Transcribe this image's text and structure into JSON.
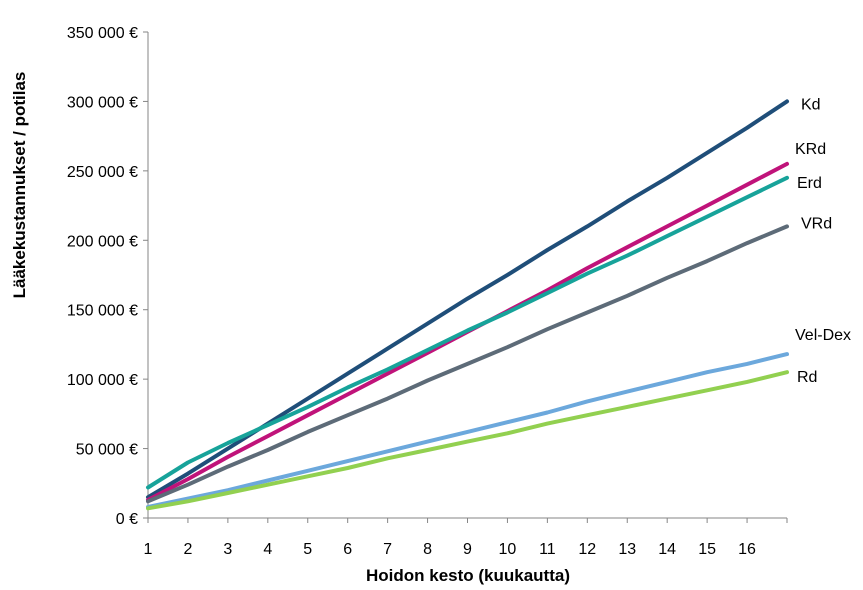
{
  "chart_data": {
    "type": "line",
    "title": "",
    "xlabel": "Hoidon kesto (kuukautta)",
    "ylabel": "Lääkekustannukset / potilas",
    "xlim": [
      1,
      17
    ],
    "ylim": [
      0,
      350000
    ],
    "x_ticks": [
      "1",
      "2",
      "3",
      "4",
      "5",
      "6",
      "7",
      "8",
      "9",
      "10",
      "11",
      "12",
      "13",
      "14",
      "15",
      "16"
    ],
    "y_ticks": [
      0,
      50000,
      100000,
      150000,
      200000,
      250000,
      300000,
      350000
    ],
    "y_tick_labels": [
      "0 €",
      "50 000 €",
      "100 000 €",
      "150 000 €",
      "200 000 €",
      "250 000 €",
      "300 000 €",
      "350 000 €"
    ],
    "grid": false,
    "legend": "direct labels at line ends",
    "x": [
      1,
      2,
      3,
      4,
      5,
      6,
      7,
      8,
      9,
      10,
      11,
      12,
      13,
      14,
      15,
      16,
      17
    ],
    "series": [
      {
        "name": "Kd",
        "color": "#1F4E79",
        "values": [
          15000,
          32000,
          50000,
          68000,
          86000,
          104000,
          122000,
          140000,
          158000,
          175000,
          193000,
          210000,
          228000,
          245000,
          263000,
          281000,
          300000
        ]
      },
      {
        "name": "KRd",
        "color": "#C0137A",
        "values": [
          13000,
          28000,
          44000,
          59000,
          74000,
          89000,
          104000,
          119000,
          134000,
          149000,
          164000,
          180000,
          195000,
          210000,
          225000,
          240000,
          255000
        ]
      },
      {
        "name": "Erd",
        "color": "#17A39A",
        "values": [
          22000,
          40000,
          54000,
          67000,
          80000,
          94000,
          107000,
          121000,
          135000,
          148000,
          162000,
          176000,
          189000,
          203000,
          217000,
          231000,
          245000
        ]
      },
      {
        "name": "VRd",
        "color": "#5D6B78",
        "values": [
          12000,
          24000,
          37000,
          49000,
          62000,
          74000,
          86000,
          99000,
          111000,
          123000,
          136000,
          148000,
          160000,
          173000,
          185000,
          198000,
          210000
        ]
      },
      {
        "name": "Vel-Dex",
        "color": "#6CA8DC",
        "values": [
          8000,
          14000,
          20000,
          27000,
          34000,
          41000,
          48000,
          55000,
          62000,
          69000,
          76000,
          84000,
          91000,
          98000,
          105000,
          111000,
          118000
        ]
      },
      {
        "name": "Rd",
        "color": "#92D050",
        "values": [
          7000,
          12000,
          18000,
          24000,
          30000,
          36000,
          43000,
          49000,
          55000,
          61000,
          68000,
          74000,
          80000,
          86000,
          92000,
          98000,
          105000
        ]
      }
    ]
  }
}
